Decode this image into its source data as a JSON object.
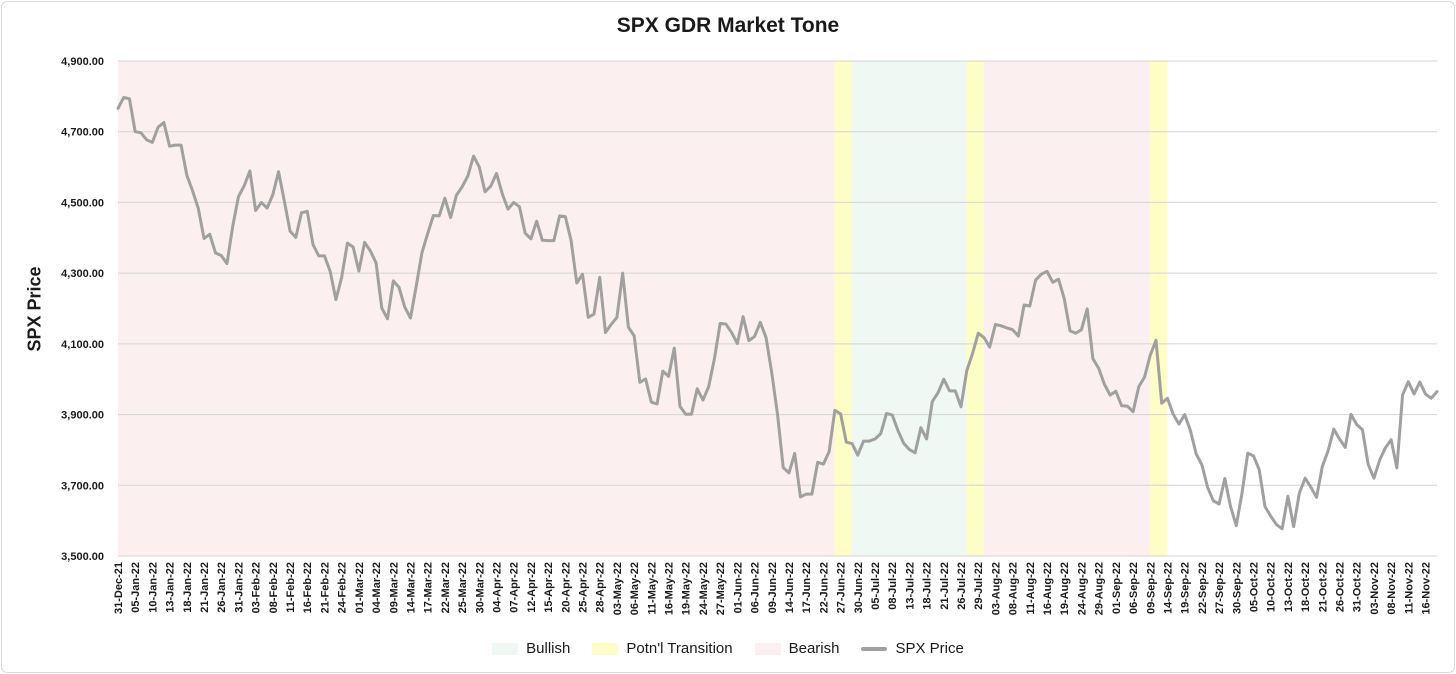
{
  "chart_data": {
    "type": "line",
    "title": "SPX GDR Market Tone",
    "ylabel": "SPX Price",
    "xlabel": "",
    "ylim": [
      3500,
      4900
    ],
    "yticks": [
      3500,
      3700,
      3900,
      4100,
      4300,
      4500,
      4700,
      4900
    ],
    "ytick_labels": [
      "3,500.00",
      "3,700.00",
      "3,900.00",
      "4,100.00",
      "4,300.00",
      "4,500.00",
      "4,700.00",
      "4,900.00"
    ],
    "x_tick_labels": [
      "31-Dec-21",
      "05-Jan-22",
      "10-Jan-22",
      "13-Jan-22",
      "18-Jan-22",
      "21-Jan-22",
      "26-Jan-22",
      "31-Jan-22",
      "03-Feb-22",
      "08-Feb-22",
      "11-Feb-22",
      "16-Feb-22",
      "21-Feb-22",
      "24-Feb-22",
      "01-Mar-22",
      "04-Mar-22",
      "09-Mar-22",
      "14-Mar-22",
      "17-Mar-22",
      "22-Mar-22",
      "25-Mar-22",
      "30-Mar-22",
      "04-Apr-22",
      "07-Apr-22",
      "12-Apr-22",
      "15-Apr-22",
      "20-Apr-22",
      "25-Apr-22",
      "28-Apr-22",
      "03-May-22",
      "06-May-22",
      "11-May-22",
      "16-May-22",
      "19-May-22",
      "24-May-22",
      "27-May-22",
      "01-Jun-22",
      "06-Jun-22",
      "09-Jun-22",
      "14-Jun-22",
      "17-Jun-22",
      "22-Jun-22",
      "27-Jun-22",
      "30-Jun-22",
      "05-Jul-22",
      "08-Jul-22",
      "13-Jul-22",
      "18-Jul-22",
      "21-Jul-22",
      "26-Jul-22",
      "29-Jul-22",
      "03-Aug-22",
      "08-Aug-22",
      "11-Aug-22",
      "16-Aug-22",
      "19-Aug-22",
      "24-Aug-22",
      "29-Aug-22",
      "01-Sep-22",
      "06-Sep-22",
      "09-Sep-22",
      "14-Sep-22",
      "19-Sep-22",
      "22-Sep-22",
      "27-Sep-22",
      "30-Sep-22",
      "05-Oct-22",
      "10-Oct-22",
      "13-Oct-22",
      "18-Oct-22",
      "21-Oct-22",
      "26-Oct-22",
      "31-Oct-22",
      "03-Nov-22",
      "08-Nov-22",
      "11-Nov-22",
      "16-Nov-22"
    ],
    "x_tick_stride": 3,
    "regimes": [
      {
        "label": "Bearish",
        "start_index": 0,
        "end_index": 125
      },
      {
        "label": "Potn'l Transition",
        "start_index": 125,
        "end_index": 128
      },
      {
        "label": "Bullish",
        "start_index": 128,
        "end_index": 148
      },
      {
        "label": "Potn'l Transition",
        "start_index": 148,
        "end_index": 151
      },
      {
        "label": "Bearish",
        "start_index": 151,
        "end_index": 180
      },
      {
        "label": "Potn'l Transition",
        "start_index": 180,
        "end_index": 183
      }
    ],
    "series": [
      {
        "name": "SPX Price",
        "values": [
          4766,
          4797,
          4793,
          4700,
          4697,
          4677,
          4670,
          4713,
          4726,
          4659,
          4662,
          4662,
          4577,
          4533,
          4483,
          4398,
          4410,
          4357,
          4350,
          4327,
          4432,
          4516,
          4547,
          4589,
          4477,
          4500,
          4484,
          4522,
          4587,
          4504,
          4419,
          4401,
          4471,
          4475,
          4381,
          4349,
          4349,
          4305,
          4225,
          4288,
          4385,
          4374,
          4306,
          4387,
          4363,
          4329,
          4201,
          4171,
          4278,
          4260,
          4204,
          4173,
          4263,
          4358,
          4412,
          4463,
          4462,
          4512,
          4457,
          4520,
          4544,
          4575,
          4631,
          4600,
          4530,
          4546,
          4582,
          4525,
          4481,
          4500,
          4488,
          4413,
          4397,
          4447,
          4393,
          4392,
          4392,
          4462,
          4460,
          4393,
          4272,
          4297,
          4175,
          4184,
          4288,
          4132,
          4155,
          4175,
          4300,
          4147,
          4123,
          3991,
          4001,
          3935,
          3930,
          4023,
          4008,
          4088,
          3923,
          3901,
          3901,
          3973,
          3941,
          3979,
          4058,
          4158,
          4156,
          4132,
          4101,
          4177,
          4109,
          4121,
          4161,
          4118,
          4018,
          3901,
          3750,
          3735,
          3790,
          3667,
          3675,
          3675,
          3765,
          3760,
          3795,
          3912,
          3902,
          3822,
          3818,
          3785,
          3825,
          3825,
          3831,
          3846,
          3903,
          3899,
          3855,
          3819,
          3801,
          3792,
          3863,
          3831,
          3937,
          3962,
          4000,
          3967,
          3967,
          3922,
          4024,
          4072,
          4130,
          4118,
          4091,
          4155,
          4151,
          4145,
          4140,
          4122,
          4210,
          4207,
          4280,
          4297,
          4305,
          4274,
          4283,
          4228,
          4137,
          4130,
          4140,
          4199,
          4058,
          4031,
          3986,
          3955,
          3966,
          3925,
          3924,
          3908,
          3979,
          4006,
          4068,
          4110,
          3932,
          3946,
          3901,
          3873,
          3900,
          3855,
          3789,
          3758,
          3694,
          3656,
          3647,
          3719,
          3640,
          3586,
          3678,
          3791,
          3783,
          3744,
          3640,
          3613,
          3589,
          3577,
          3669,
          3583,
          3678,
          3720,
          3695,
          3666,
          3753,
          3797,
          3859,
          3831,
          3807,
          3901,
          3872,
          3857,
          3759,
          3720,
          3771,
          3806,
          3829,
          3749,
          3956,
          3993,
          3958,
          3992,
          3958,
          3946,
          3965
        ]
      }
    ],
    "legend": [
      "Bullish",
      "Potn'l Transition",
      "Bearish",
      "SPX Price"
    ],
    "legend_position": "bottom",
    "colors": {
      "bullish": "#eff8f2",
      "transition": "#fdfdc6",
      "bearish": "#fbf0ef",
      "line": "#a0a0a0",
      "grid": "#d4d4d4",
      "text": "#1a1a1a"
    },
    "grid": true
  }
}
